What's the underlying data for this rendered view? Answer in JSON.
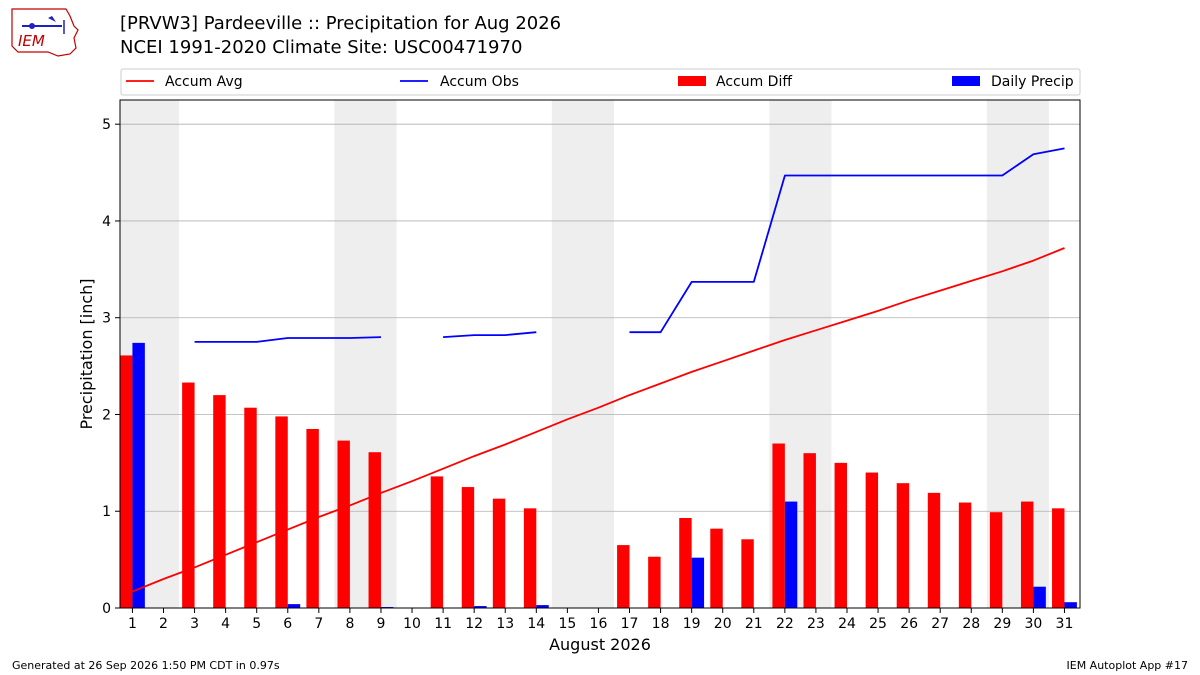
{
  "header": {
    "title_line1": "[PRVW3] Pardeeville :: Precipitation for Aug 2026",
    "title_line2": "NCEI 1991-2020 Climate Site: USC00471970",
    "logo_text": "IEM"
  },
  "footer": {
    "left": "Generated at 26 Sep 2026 1:50 PM CDT in 0.97s",
    "right": "IEM Autoplot App #17"
  },
  "colors": {
    "accum_avg": "#ff0000",
    "accum_obs": "#0000ff",
    "accum_diff": "#ff0000",
    "daily_precip": "#0000ff",
    "weekend_shade": "#eeeeee",
    "grid": "#b0b0b0"
  },
  "chart_data": {
    "type": "bar",
    "title": "",
    "xlabel": "August 2026",
    "ylabel": "Precipitation [inch]",
    "x": [
      1,
      2,
      3,
      4,
      5,
      6,
      7,
      8,
      9,
      10,
      11,
      12,
      13,
      14,
      15,
      16,
      17,
      18,
      19,
      20,
      21,
      22,
      23,
      24,
      25,
      26,
      27,
      28,
      29,
      30,
      31
    ],
    "xlim": [
      0.6,
      31.5
    ],
    "ylim": [
      0,
      5.25
    ],
    "yticks": [
      0,
      1,
      2,
      3,
      4,
      5
    ],
    "grid": true,
    "legend_position": "top, above plot",
    "legend": [
      "Accum Avg",
      "Accum Obs",
      "Accum Diff",
      "Daily Precip"
    ],
    "weekend_days": [
      1,
      2,
      8,
      9,
      15,
      16,
      22,
      23,
      29,
      30
    ],
    "series": [
      {
        "name": "Accum Avg",
        "type": "line",
        "values": [
          0.17,
          0.3,
          0.42,
          0.55,
          0.68,
          0.81,
          0.94,
          1.06,
          1.19,
          1.31,
          1.44,
          1.57,
          1.69,
          1.82,
          1.95,
          2.07,
          2.2,
          2.32,
          2.44,
          2.55,
          2.66,
          2.77,
          2.87,
          2.97,
          3.07,
          3.18,
          3.28,
          3.38,
          3.48,
          3.59,
          3.72
        ]
      },
      {
        "name": "Accum Obs",
        "type": "line",
        "values": [
          null,
          null,
          2.75,
          2.75,
          2.75,
          2.79,
          2.79,
          2.79,
          2.8,
          null,
          2.8,
          2.82,
          2.82,
          2.85,
          null,
          null,
          2.85,
          2.85,
          3.37,
          3.37,
          3.37,
          4.47,
          4.47,
          4.47,
          4.47,
          4.47,
          4.47,
          4.47,
          4.47,
          4.69,
          4.75
        ]
      },
      {
        "name": "Accum Diff",
        "type": "bar",
        "values": [
          2.61,
          null,
          2.33,
          2.2,
          2.07,
          1.98,
          1.85,
          1.73,
          1.61,
          null,
          1.36,
          1.25,
          1.13,
          1.03,
          null,
          null,
          0.65,
          0.53,
          0.93,
          0.82,
          0.71,
          1.7,
          1.6,
          1.5,
          1.4,
          1.29,
          1.19,
          1.09,
          0.99,
          1.1,
          1.03
        ]
      },
      {
        "name": "Daily Precip",
        "type": "bar",
        "values": [
          2.74,
          null,
          null,
          null,
          null,
          0.04,
          null,
          null,
          0.01,
          null,
          null,
          0.02,
          null,
          0.03,
          null,
          null,
          null,
          null,
          0.52,
          null,
          null,
          1.1,
          null,
          null,
          null,
          null,
          null,
          null,
          null,
          0.22,
          0.06
        ]
      }
    ]
  }
}
